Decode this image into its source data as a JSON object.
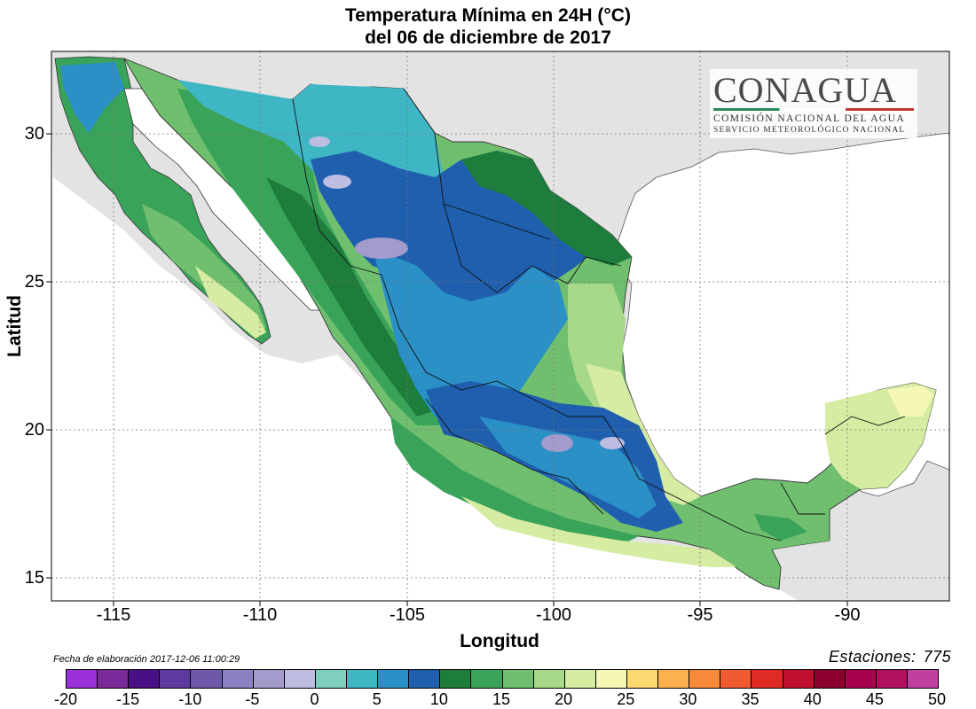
{
  "title": "Temperatura Mínima en 24H (°C)",
  "subtitle": "del  06 de diciembre de 2017",
  "xlabel": "Longitud",
  "ylabel": "Latitud",
  "xticks": [
    "-115",
    "-110",
    "-105",
    "-100",
    "-95",
    "-90"
  ],
  "yticks": [
    "30",
    "25",
    "20",
    "15"
  ],
  "footnote": "Fecha de elaboración 2017-12-06 11:00:29",
  "stations_label": "Estaciones:",
  "stations_count": "775",
  "logo": {
    "name": "CONAGUA",
    "line1": "COMISIÓN NACIONAL DEL AGUA",
    "line2": "SERVICIO METEOROLÓGICO NACIONAL"
  },
  "colorbar": {
    "labels": [
      "-20",
      "-15",
      "-10",
      "-5",
      "0",
      "5",
      "10",
      "15",
      "20",
      "25",
      "30",
      "35",
      "40",
      "45",
      "50"
    ],
    "colors": [
      "#9b30d9",
      "#7b2a9a",
      "#4b0f85",
      "#5c3a9e",
      "#7058a8",
      "#8a82c2",
      "#a39bcc",
      "#bcbde0",
      "#7fcfbf",
      "#3fb6c4",
      "#2a90c6",
      "#1f5fae",
      "#1e7d3c",
      "#3aa35a",
      "#6fbf6f",
      "#a8d98a",
      "#d6eca2",
      "#f5f8b4",
      "#fdd870",
      "#fcb050",
      "#f68a3a",
      "#f05a30",
      "#e02a25",
      "#c01030",
      "#8b0030",
      "#a8004a",
      "#b01060",
      "#c040a0"
    ]
  },
  "colors": {
    "land_gray": "#e3e3e3",
    "water": "#ffffff",
    "very_cold": "#a39bcc",
    "cold_purple": "#bcbde0",
    "teal": "#3fb6c4",
    "light_blue": "#2a90c6",
    "dark_blue": "#1f5fae",
    "dark_green": "#1e7d3c",
    "green": "#3aa35a",
    "mid_green": "#6fbf6f",
    "light_green": "#a8d98a",
    "pale_green": "#d6eca2",
    "pale_yellow": "#f5f8b4"
  }
}
